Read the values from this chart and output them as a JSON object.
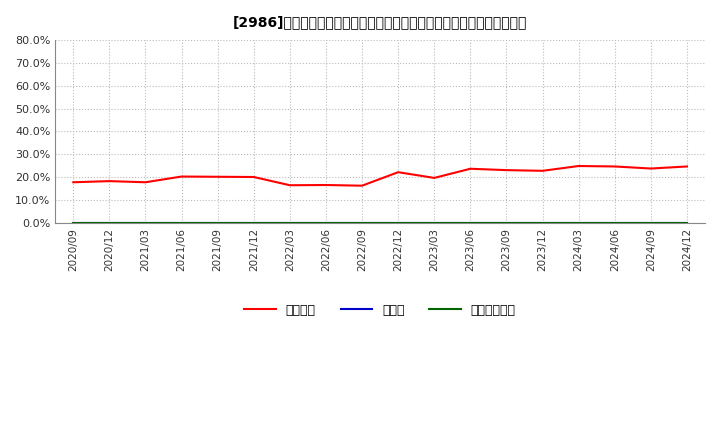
{
  "title": "[2986]　自己資本、のれん、繰延税金資産の総資産に対する比率の推移",
  "x_labels": [
    "2020/09",
    "2020/12",
    "2021/03",
    "2021/06",
    "2021/09",
    "2021/12",
    "2022/03",
    "2022/06",
    "2022/09",
    "2022/12",
    "2023/03",
    "2023/06",
    "2023/09",
    "2023/12",
    "2024/03",
    "2024/06",
    "2024/09",
    "2024/12"
  ],
  "equity_ratio": [
    0.178,
    0.183,
    0.178,
    0.203,
    0.202,
    0.201,
    0.165,
    0.166,
    0.163,
    0.222,
    0.197,
    0.237,
    0.231,
    0.228,
    0.249,
    0.247,
    0.238,
    0.247
  ],
  "goodwill_ratio": [
    0.0,
    0.0,
    0.0,
    0.0,
    0.0,
    0.0,
    0.0,
    0.0,
    0.0,
    0.0,
    0.0,
    0.0,
    0.0,
    0.0,
    0.0,
    0.0,
    0.0,
    0.0
  ],
  "deferred_tax_ratio": [
    0.0,
    0.0,
    0.0,
    0.0,
    0.0,
    0.0,
    0.0,
    0.0,
    0.0,
    0.0,
    0.0,
    0.0,
    0.0,
    0.0,
    0.0,
    0.0,
    0.0,
    0.0
  ],
  "equity_color": "#ff0000",
  "goodwill_color": "#0000cc",
  "deferred_tax_color": "#006600",
  "background_color": "#ffffff",
  "plot_bg_color": "#ffffff",
  "grid_color": "#bbbbbb",
  "ylim": [
    0.0,
    0.8
  ],
  "ytick_values": [
    0.0,
    0.1,
    0.2,
    0.3,
    0.4,
    0.5,
    0.6,
    0.7,
    0.8
  ],
  "legend_labels": [
    "自己資本",
    "のれん",
    "繰延税金資産"
  ],
  "line_width": 1.5
}
